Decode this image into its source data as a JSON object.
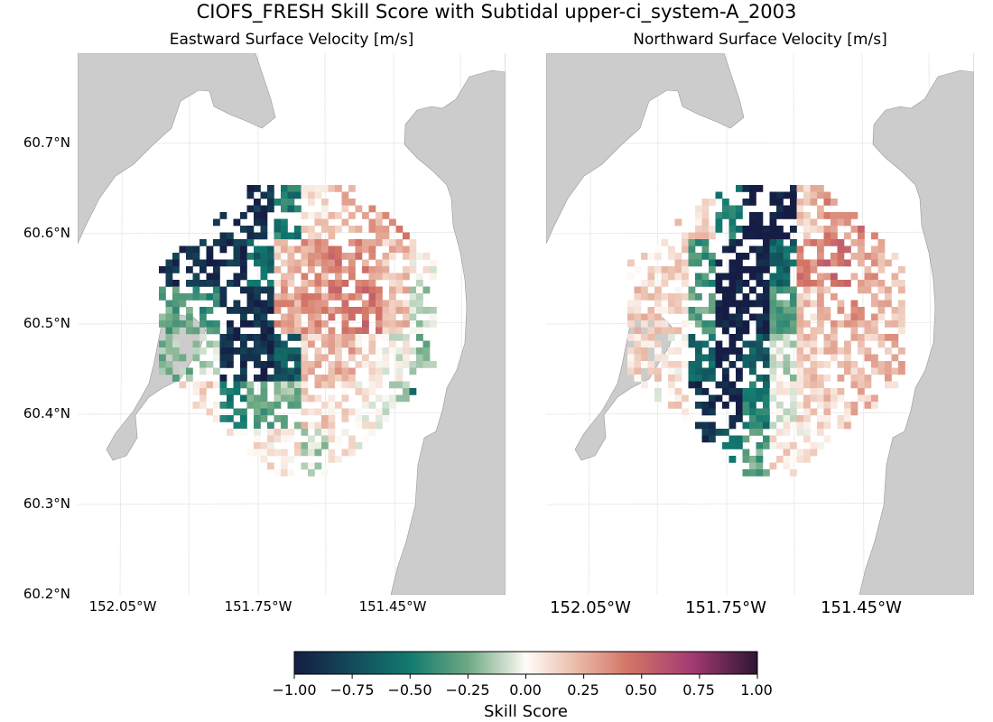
{
  "title": "CIOFS_FRESH Skill Score with Subtidal upper-ci_system-A_2003",
  "chart_data": {
    "type": "heatmap",
    "panels": [
      {
        "title": "Eastward Surface Velocity [m/s]",
        "cells": [
          [
            -0.9,
            -0.9,
            -0.9,
            -0.9,
            -0.5,
            0.1,
            0.2,
            0.3,
            0.4,
            0.3
          ],
          [
            -0.9,
            -0.9,
            -0.9,
            -0.6,
            0.2,
            0.3,
            0.4,
            0.35,
            0.2,
            0.0
          ],
          [
            -0.3,
            -0.4,
            -0.9,
            -0.9,
            0.3,
            0.35,
            0.4,
            0.45,
            0.2,
            -0.1
          ],
          [
            -0.2,
            -0.1,
            -0.9,
            -0.9,
            -0.7,
            0.2,
            0.25,
            0.1,
            0.0,
            -0.2
          ],
          [
            0.1,
            0.1,
            -0.5,
            -0.3,
            -0.2,
            0.15,
            0.1,
            0.05,
            -0.1,
            -0.6
          ],
          [
            -0.2,
            0.2,
            0.1,
            0.05,
            0.1,
            -0.1,
            0.05,
            0.0,
            -0.3,
            0.1
          ]
        ]
      },
      {
        "title": "Northward Surface Velocity [m/s]",
        "cells": [
          [
            -0.6,
            0.1,
            0.15,
            -0.5,
            -1.0,
            -1.0,
            0.2,
            0.35,
            0.4,
            0.3
          ],
          [
            0.1,
            0.15,
            -0.4,
            -1.0,
            -1.0,
            -0.6,
            0.4,
            0.45,
            0.3,
            0.2
          ],
          [
            0.15,
            0.1,
            -0.3,
            -1.0,
            -1.0,
            -0.3,
            0.2,
            0.25,
            0.3,
            0.2
          ],
          [
            0.1,
            0.05,
            -0.6,
            -1.0,
            -0.7,
            -0.1,
            0.15,
            0.2,
            0.2,
            0.25
          ],
          [
            0.05,
            0.1,
            -0.9,
            -1.0,
            -0.5,
            0.0,
            0.1,
            0.15,
            0.2,
            0.2
          ],
          [
            -0.3,
            -0.8,
            -0.9,
            -0.6,
            -0.3,
            0.1,
            0.05,
            0.1,
            0.15,
            0.2
          ]
        ]
      }
    ],
    "ylabels": [
      "60.7°N",
      "60.6°N",
      "60.5°N",
      "60.4°N",
      "60.3°N",
      "60.2°N"
    ],
    "xlabels": [
      "152.05°W",
      "151.75°W",
      "151.45°W"
    ],
    "colorbar": {
      "label": "Skill Score",
      "ticks": [
        "−1.00",
        "−0.75",
        "−0.50",
        "−0.25",
        "0.00",
        "0.25",
        "0.50",
        "0.75",
        "1.00"
      ],
      "range": [
        -1,
        1
      ]
    }
  }
}
